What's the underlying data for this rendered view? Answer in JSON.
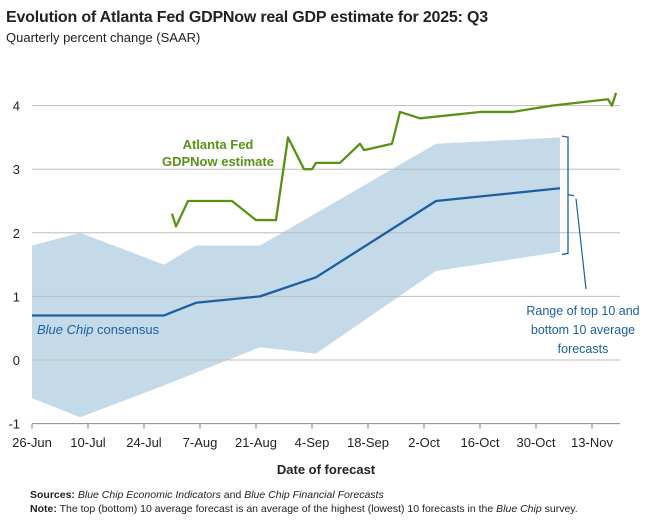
{
  "title": "Evolution of Atlanta Fed GDPNow real GDP estimate for 2025: Q3",
  "subtitle": "Quarterly percent change (SAAR)",
  "footer": {
    "sources_label": "Sources:",
    "sources_part1": "Blue Chip Economic Indicators",
    "sources_and": " and ",
    "sources_part2": "Blue Chip Financial Forecasts",
    "note_label": "Note:",
    "note_part1": " The top (bottom) 10 average forecast is an average of the highest (lowest) 10 forecasts in the ",
    "note_italic": "Blue Chip",
    "note_part2": " survey."
  },
  "chart_data": {
    "type": "line",
    "xlabel": "Date of forecast",
    "ylabel": "",
    "ylim": [
      -1,
      4.3
    ],
    "xlim": [
      "2025-06-26",
      "2025-11-20"
    ],
    "yticks": [
      -1,
      0,
      1,
      2,
      3,
      4
    ],
    "xticks": [
      {
        "date": "2025-06-26",
        "label": "26-Jun"
      },
      {
        "date": "2025-07-10",
        "label": "10-Jul"
      },
      {
        "date": "2025-07-24",
        "label": "24-Jul"
      },
      {
        "date": "2025-08-07",
        "label": "7-Aug"
      },
      {
        "date": "2025-08-21",
        "label": "21-Aug"
      },
      {
        "date": "2025-09-04",
        "label": "4-Sep"
      },
      {
        "date": "2025-09-18",
        "label": "18-Sep"
      },
      {
        "date": "2025-10-02",
        "label": "2-Oct"
      },
      {
        "date": "2025-10-16",
        "label": "16-Oct"
      },
      {
        "date": "2025-10-30",
        "label": "30-Oct"
      },
      {
        "date": "2025-11-13",
        "label": "13-Nov"
      }
    ],
    "grid": "horizontal",
    "colors": {
      "gdpnow": "#5a9216",
      "consensus": "#1a5fa0",
      "range": "#c5dae9",
      "grid": "#bdbdbd"
    },
    "series": [
      {
        "name": "Atlanta Fed GDPNow estimate",
        "label_line1": "Atlanta Fed",
        "label_line2": "GDPNow estimate",
        "points": [
          [
            "2025-07-31",
            2.3
          ],
          [
            "2025-08-01",
            2.1
          ],
          [
            "2025-08-04",
            2.5
          ],
          [
            "2025-08-15",
            2.5
          ],
          [
            "2025-08-21",
            2.2
          ],
          [
            "2025-08-26",
            2.2
          ],
          [
            "2025-08-29",
            3.5
          ],
          [
            "2025-09-02",
            3.0
          ],
          [
            "2025-09-04",
            3.0
          ],
          [
            "2025-09-05",
            3.1
          ],
          [
            "2025-09-11",
            3.1
          ],
          [
            "2025-09-16",
            3.4
          ],
          [
            "2025-09-17",
            3.3
          ],
          [
            "2025-09-24",
            3.4
          ],
          [
            "2025-09-26",
            3.9
          ],
          [
            "2025-10-01",
            3.8
          ],
          [
            "2025-10-16",
            3.9
          ],
          [
            "2025-10-24",
            3.9
          ],
          [
            "2025-11-03",
            4.0
          ],
          [
            "2025-11-17",
            4.1
          ],
          [
            "2025-11-18",
            4.0
          ],
          [
            "2025-11-19",
            4.2
          ]
        ]
      },
      {
        "name": "Blue Chip consensus",
        "label_italic": "Blue Chip",
        "label_rest": " consensus",
        "points": [
          [
            "2025-06-26",
            0.7
          ],
          [
            "2025-07-29",
            0.7
          ],
          [
            "2025-08-06",
            0.9
          ],
          [
            "2025-08-22",
            1.0
          ],
          [
            "2025-09-05",
            1.3
          ],
          [
            "2025-10-05",
            2.5
          ],
          [
            "2025-11-05",
            2.7
          ]
        ]
      }
    ],
    "range_band": {
      "name": "Range of top 10 and bottom 10 average forecasts",
      "label_lines": [
        "Range of top 10 and",
        "bottom 10 average",
        "forecasts"
      ],
      "upper": [
        [
          "2025-06-26",
          1.8
        ],
        [
          "2025-07-08",
          2.0
        ],
        [
          "2025-07-29",
          1.5
        ],
        [
          "2025-08-06",
          1.8
        ],
        [
          "2025-08-22",
          1.8
        ],
        [
          "2025-10-05",
          3.4
        ],
        [
          "2025-11-05",
          3.5
        ]
      ],
      "lower": [
        [
          "2025-06-26",
          -0.6
        ],
        [
          "2025-07-08",
          -0.9
        ],
        [
          "2025-07-29",
          -0.4
        ],
        [
          "2025-08-22",
          0.2
        ],
        [
          "2025-09-05",
          0.1
        ],
        [
          "2025-10-05",
          1.4
        ],
        [
          "2025-11-05",
          1.7
        ]
      ]
    }
  }
}
